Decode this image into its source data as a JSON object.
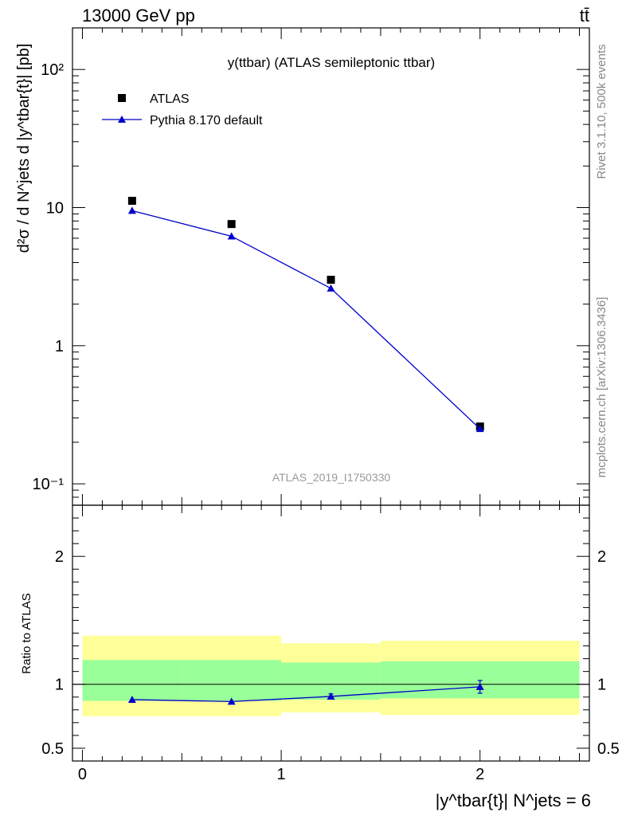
{
  "header": {
    "left": "13000 GeV pp",
    "right": "tt̄"
  },
  "side_labels": {
    "rivet": "Rivet 3.1.10,  500k events",
    "mcplots": "mcplots.cern.ch [arXiv:1306.3436]"
  },
  "chart_data": [
    {
      "type": "line",
      "panel": "main",
      "title": "y(ttbar) (ATLAS semileptonic ttbar)",
      "watermark": "ATLAS_2019_I1750330",
      "ylabel": "d²σ / d N^jets d |y^tbar{t}| [pb]",
      "yscale": "log",
      "ylim": [
        0.07,
        200
      ],
      "xlim": [
        -0.05,
        2.55
      ],
      "ytick_labels": [
        "10⁻¹",
        "1",
        "10",
        "10²"
      ],
      "legend": {
        "position": "top-left",
        "entries": [
          "ATLAS",
          "Pythia 8.170 default"
        ]
      },
      "series": [
        {
          "name": "ATLAS",
          "marker": "square",
          "color": "#000000",
          "x": [
            0.25,
            0.75,
            1.25,
            2.0
          ],
          "y": [
            11.2,
            7.6,
            3.0,
            0.26
          ]
        },
        {
          "name": "Pythia 8.170 default",
          "marker": "triangle",
          "color": "#0000cc",
          "x": [
            0.25,
            0.75,
            1.25,
            2.0
          ],
          "y": [
            9.5,
            6.2,
            2.6,
            0.25
          ]
        }
      ]
    },
    {
      "type": "line",
      "panel": "ratio",
      "ylabel": "Ratio to ATLAS",
      "ylim": [
        0.4,
        2.4
      ],
      "xlabel": "|y^tbar{t}| N^jets = 6",
      "xtick_labels": [
        "0",
        "1",
        "2"
      ],
      "ytick_labels": [
        "0.5",
        "1",
        "2"
      ],
      "bands": [
        {
          "x0": 0.0,
          "x1": 0.5,
          "yellow": [
            0.75,
            1.38
          ],
          "green": [
            0.87,
            1.19
          ]
        },
        {
          "x0": 0.5,
          "x1": 1.0,
          "yellow": [
            0.75,
            1.38
          ],
          "green": [
            0.87,
            1.19
          ]
        },
        {
          "x0": 1.0,
          "x1": 1.5,
          "yellow": [
            0.78,
            1.32
          ],
          "green": [
            0.88,
            1.17
          ]
        },
        {
          "x0": 1.5,
          "x1": 2.5,
          "yellow": [
            0.76,
            1.34
          ],
          "green": [
            0.89,
            1.18
          ]
        }
      ],
      "series": [
        {
          "name": "Pythia 8.170 default",
          "marker": "triangle",
          "color": "#0000cc",
          "x": [
            0.25,
            0.75,
            1.25,
            2.0
          ],
          "y": [
            0.88,
            0.865,
            0.905,
            0.98
          ],
          "err": [
            0.0,
            0.0,
            0.02,
            0.05
          ]
        }
      ]
    }
  ]
}
